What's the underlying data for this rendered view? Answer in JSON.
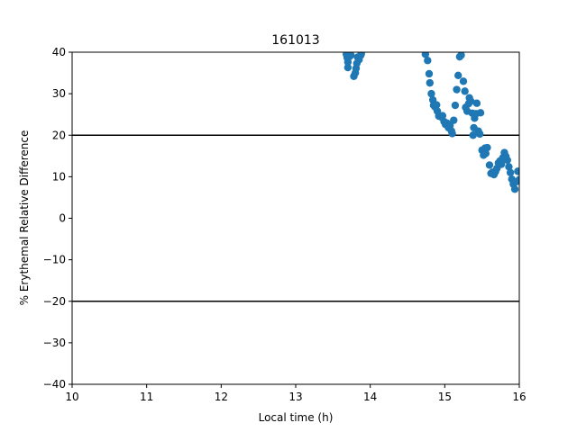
{
  "chart_data": {
    "type": "scatter",
    "title": "161013",
    "xlabel": "Local time (h)",
    "ylabel": "% Erythemal Relative Difference",
    "xlim": [
      10,
      16
    ],
    "ylim": [
      -40,
      40
    ],
    "xticks": [
      10,
      11,
      12,
      13,
      14,
      15,
      16
    ],
    "yticks": [
      -40,
      -30,
      -20,
      -10,
      0,
      10,
      20,
      30,
      40
    ],
    "xtick_labels": [
      "10",
      "11",
      "12",
      "13",
      "14",
      "15",
      "16"
    ],
    "ytick_labels": [
      "−40",
      "−30",
      "−20",
      "−10",
      "0",
      "10",
      "20",
      "30",
      "40"
    ],
    "hlines": [
      20,
      -20
    ],
    "grid": false,
    "marker_color": "#1f77b4",
    "line_color": "#000000",
    "points": [
      [
        13.68,
        39.5
      ],
      [
        13.69,
        38.7
      ],
      [
        13.7,
        37.6
      ],
      [
        13.7,
        36.3
      ],
      [
        13.72,
        38.9
      ],
      [
        13.74,
        39.3
      ],
      [
        13.78,
        34.2
      ],
      [
        13.8,
        35.0
      ],
      [
        13.81,
        36.1
      ],
      [
        13.82,
        37.3
      ],
      [
        13.83,
        38.8
      ],
      [
        13.85,
        38.2
      ],
      [
        13.87,
        39.2
      ],
      [
        13.88,
        39.6
      ],
      [
        14.74,
        39.5
      ],
      [
        14.77,
        38.0
      ],
      [
        14.79,
        34.8
      ],
      [
        14.8,
        32.6
      ],
      [
        14.82,
        30.0
      ],
      [
        14.84,
        28.5
      ],
      [
        14.85,
        27.2
      ],
      [
        14.87,
        26.8
      ],
      [
        14.89,
        27.3
      ],
      [
        14.9,
        25.8
      ],
      [
        14.92,
        24.6
      ],
      [
        14.95,
        24.4
      ],
      [
        14.97,
        24.7
      ],
      [
        14.99,
        23.3
      ],
      [
        15.01,
        22.6
      ],
      [
        15.03,
        22.9
      ],
      [
        15.05,
        21.8
      ],
      [
        15.07,
        22.3
      ],
      [
        15.09,
        21.0
      ],
      [
        15.1,
        20.4
      ],
      [
        15.12,
        23.6
      ],
      [
        15.14,
        27.2
      ],
      [
        15.16,
        31.0
      ],
      [
        15.18,
        34.4
      ],
      [
        15.2,
        38.9
      ],
      [
        15.22,
        39.3
      ],
      [
        15.25,
        33.0
      ],
      [
        15.27,
        30.6
      ],
      [
        15.28,
        26.7
      ],
      [
        15.3,
        25.8
      ],
      [
        15.32,
        27.6
      ],
      [
        15.33,
        29.0
      ],
      [
        15.35,
        28.2
      ],
      [
        15.37,
        25.3
      ],
      [
        15.38,
        20.0
      ],
      [
        15.39,
        21.8
      ],
      [
        15.4,
        24.1
      ],
      [
        15.42,
        25.2
      ],
      [
        15.43,
        27.7
      ],
      [
        15.45,
        21.0
      ],
      [
        15.47,
        20.3
      ],
      [
        15.48,
        25.4
      ],
      [
        15.5,
        16.4
      ],
      [
        15.52,
        15.2
      ],
      [
        15.54,
        16.9
      ],
      [
        15.55,
        15.6
      ],
      [
        15.57,
        17.0
      ],
      [
        15.6,
        12.8
      ],
      [
        15.62,
        10.8
      ],
      [
        15.64,
        11.1
      ],
      [
        15.66,
        10.5
      ],
      [
        15.68,
        11.2
      ],
      [
        15.7,
        12.0
      ],
      [
        15.72,
        13.3
      ],
      [
        15.74,
        13.8
      ],
      [
        15.76,
        13.0
      ],
      [
        15.78,
        14.6
      ],
      [
        15.8,
        15.8
      ],
      [
        15.82,
        14.9
      ],
      [
        15.84,
        14.0
      ],
      [
        15.86,
        12.4
      ],
      [
        15.88,
        11.0
      ],
      [
        15.9,
        9.4
      ],
      [
        15.92,
        8.2
      ],
      [
        15.94,
        7.0
      ],
      [
        15.96,
        8.8
      ],
      [
        15.98,
        11.3
      ],
      [
        16.0,
        9.3
      ]
    ]
  }
}
